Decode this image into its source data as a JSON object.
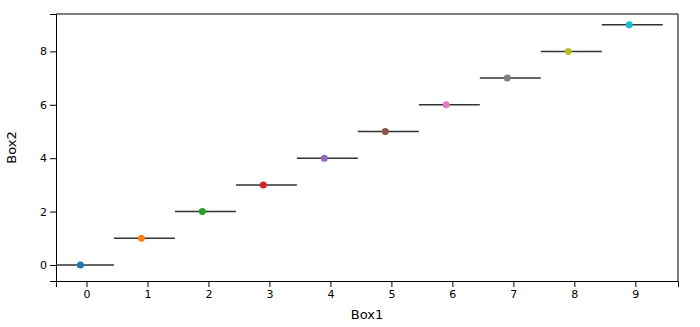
{
  "chart_data": {
    "type": "scatter",
    "xlabel": "Box1",
    "ylabel": "Box2",
    "x": [
      0,
      1,
      2,
      3,
      4,
      5,
      6,
      7,
      8,
      9
    ],
    "values": [
      0,
      1,
      2,
      3,
      4,
      5,
      6,
      7,
      8,
      9
    ],
    "colors": [
      "#1f77b4",
      "#ff7f0e",
      "#2ca02c",
      "#d62728",
      "#9467bd",
      "#8c564b",
      "#e377c2",
      "#7f7f7f",
      "#bcbd22",
      "#17becf"
    ],
    "color": "#333333",
    "xlim": [
      -0.5,
      9.7
    ],
    "ylim": [
      -0.6,
      9.4
    ],
    "xticks": [
      0,
      1,
      2,
      3,
      4,
      5,
      6,
      7,
      8,
      9
    ],
    "yticks": [
      0,
      2,
      4,
      6,
      8
    ],
    "grid": false
  }
}
